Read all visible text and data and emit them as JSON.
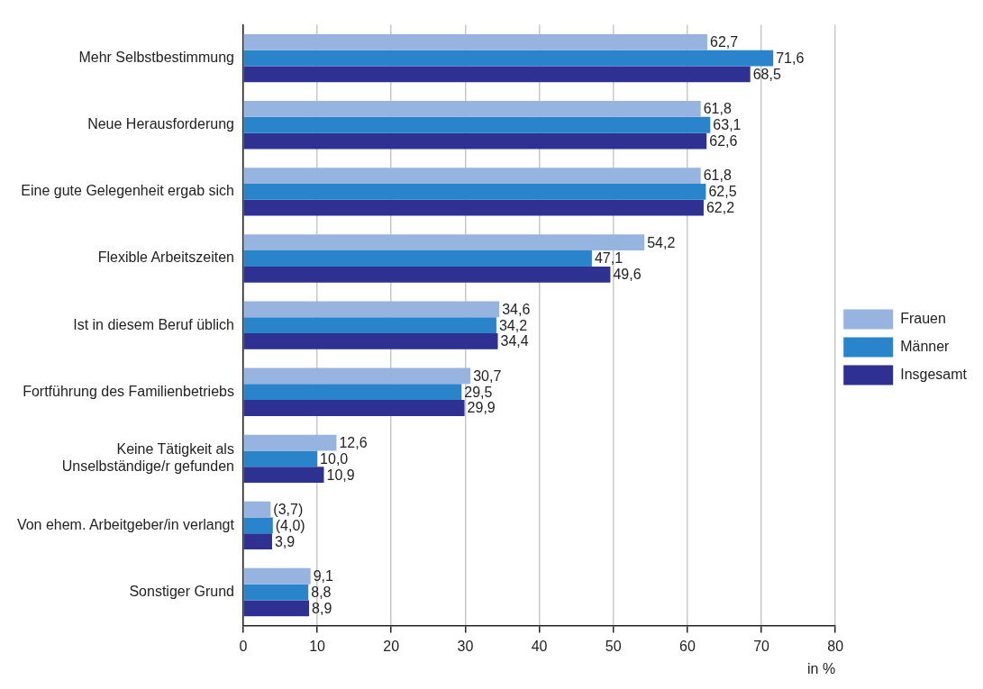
{
  "chart_data": {
    "type": "bar",
    "orientation": "horizontal",
    "categories": [
      "Mehr Selbstbestimmung",
      "Neue Herausforderung",
      "Eine gute Gelegenheit ergab sich",
      "Flexible Arbeitszeiten",
      "Ist in diesem Beruf üblich",
      "Fortführung des Familienbetriebs",
      "Keine Tätigkeit als\nUnselbständige/r gefunden",
      "Von ehem. Arbeitgeber/in verlangt",
      "Sonstiger Grund"
    ],
    "series": [
      {
        "name": "Frauen",
        "color": "#97b4e0",
        "values": [
          62.7,
          61.8,
          61.8,
          54.2,
          34.6,
          30.7,
          12.6,
          3.7,
          9.1
        ],
        "value_labels": [
          "62,7",
          "61,8",
          "61,8",
          "54,2",
          "34,6",
          "30,7",
          "12,6",
          "(3,7)",
          "9,1"
        ]
      },
      {
        "name": "Männer",
        "color": "#2a84cc",
        "values": [
          71.6,
          63.1,
          62.5,
          47.1,
          34.2,
          29.5,
          10.0,
          4.0,
          8.8
        ],
        "value_labels": [
          "71,6",
          "63,1",
          "62,5",
          "47,1",
          "34,2",
          "29,5",
          "10,0",
          "(4,0)",
          "8,8"
        ]
      },
      {
        "name": "Insgesamt",
        "color": "#2e3192",
        "values": [
          68.5,
          62.6,
          62.2,
          49.6,
          34.4,
          29.9,
          10.9,
          3.9,
          8.9
        ],
        "value_labels": [
          "68,5",
          "62,6",
          "62,2",
          "49,6",
          "34,4",
          "29,9",
          "10,9",
          "3,9",
          "8,9"
        ]
      }
    ],
    "xlim": [
      0,
      80
    ],
    "xticks": [
      0,
      10,
      20,
      30,
      40,
      50,
      60,
      70,
      80
    ],
    "xlabel": "in %",
    "grid": "x",
    "legend": "right"
  }
}
